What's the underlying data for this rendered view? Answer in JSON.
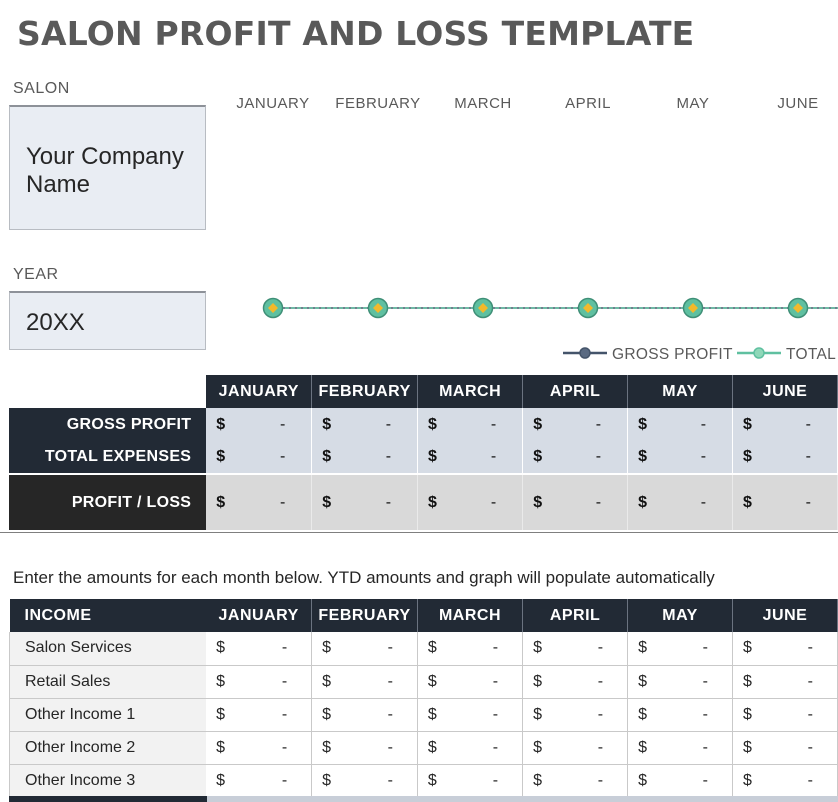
{
  "title": "SALON PROFIT AND LOSS TEMPLATE",
  "salon_label": "SALON",
  "company_name": "Your Company Name",
  "year_label": "YEAR",
  "year_value": "20XX",
  "months": [
    "JANUARY",
    "FEBRUARY",
    "MARCH",
    "APRIL",
    "MAY",
    "JUNE"
  ],
  "chart_data": {
    "type": "line",
    "categories": [
      "JANUARY",
      "FEBRUARY",
      "MARCH",
      "APRIL",
      "MAY",
      "JUNE"
    ],
    "series": [
      {
        "name": "GROSS PROFIT",
        "color": "#44546a",
        "values": [
          0,
          0,
          0,
          0,
          0,
          0
        ]
      },
      {
        "name": "TOTAL EXPENSES",
        "color": "#5fc0a0",
        "values": [
          0,
          0,
          0,
          0,
          0,
          0
        ]
      }
    ],
    "legend_labels": [
      "GROSS PROFIT",
      "TOTAL"
    ],
    "marker_color": "#f2b92b",
    "legend": "bottom-right"
  },
  "summary": {
    "rows": [
      {
        "label": "GROSS PROFIT",
        "cells": [
          "-",
          "-",
          "-",
          "-",
          "-",
          "-"
        ]
      },
      {
        "label": "TOTAL EXPENSES",
        "cells": [
          "-",
          "-",
          "-",
          "-",
          "-",
          "-"
        ]
      },
      {
        "label": "PROFIT / LOSS",
        "cells": [
          "-",
          "-",
          "-",
          "-",
          "-",
          "-"
        ]
      }
    ]
  },
  "currency_symbol": "$",
  "instruction": "Enter the amounts for each month below. YTD amounts and graph will populate automatically",
  "income": {
    "header": "INCOME",
    "rows": [
      {
        "label": "Salon Services",
        "cells": [
          "-",
          "-",
          "-",
          "-",
          "-",
          "-"
        ]
      },
      {
        "label": "Retail Sales",
        "cells": [
          "-",
          "-",
          "-",
          "-",
          "-",
          "-"
        ]
      },
      {
        "label": "Other Income 1",
        "cells": [
          "-",
          "-",
          "-",
          "-",
          "-",
          "-"
        ]
      },
      {
        "label": "Other Income 2",
        "cells": [
          "-",
          "-",
          "-",
          "-",
          "-",
          "-"
        ]
      },
      {
        "label": "Other Income 3",
        "cells": [
          "-",
          "-",
          "-",
          "-",
          "-",
          "-"
        ]
      }
    ]
  },
  "colors": {
    "header_dark": "#222a35",
    "value_fill": "#d6dce5",
    "profit_fill": "#d9d9d9",
    "input_fill": "#e9edf3"
  }
}
